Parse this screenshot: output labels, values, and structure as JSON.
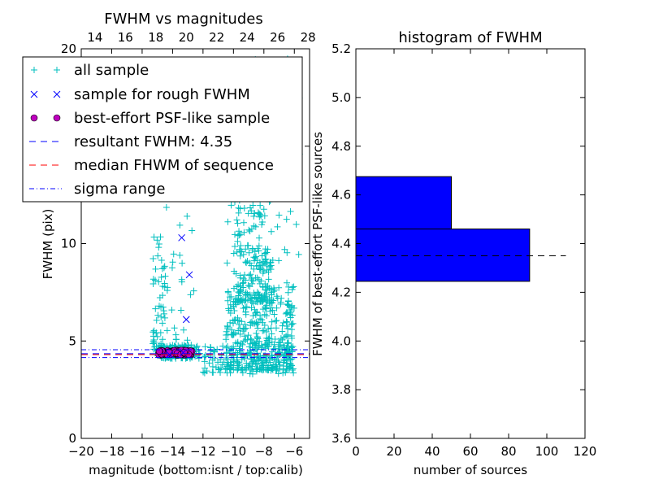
{
  "chart_data": [
    {
      "type": "scatter",
      "title": "FWHM vs magnitudes",
      "xlabel": "magnitude (bottom:isnt / top:calib)",
      "ylabel": "FWHM (pix)",
      "xlim": [
        -20,
        -5
      ],
      "ylim": [
        0,
        20
      ],
      "x_ticks": [
        -20,
        -18,
        -16,
        -14,
        -12,
        -10,
        -8,
        -6
      ],
      "x_tick_labels": [
        "−20",
        "−18",
        "−16",
        "−14",
        "−12",
        "−10",
        "−8",
        "−6"
      ],
      "y_ticks": [
        0,
        5,
        10,
        15,
        20
      ],
      "y_tick_labels": [
        "0",
        "5",
        "10",
        "15",
        "20"
      ],
      "top_axis": {
        "ticks": [
          14,
          16,
          18,
          20,
          22,
          24,
          26,
          28
        ],
        "tick_labels": [
          "14",
          "16",
          "18",
          "20",
          "22",
          "24",
          "26",
          "28"
        ],
        "offset": 33.1
      },
      "legend_position": "upper-left",
      "series": [
        {
          "name": "all sample",
          "marker": "+",
          "color": "#00bfbf",
          "clusters": [
            {
              "x_range": [
                -15.0,
                -12.2
              ],
              "y_range": [
                4.1,
                4.8
              ],
              "n": 150
            },
            {
              "x_range": [
                -15.3,
                -14.5
              ],
              "y_range": [
                4.5,
                10.5
              ],
              "n": 55
            },
            {
              "x_range": [
                -10.5,
                -6.0
              ],
              "y_range": [
                3.5,
                8.0
              ],
              "n": 380
            },
            {
              "x_range": [
                -10.0,
                -7.5
              ],
              "y_range": [
                7.0,
                15.0
              ],
              "n": 220
            },
            {
              "x_range": [
                -11.0,
                -5.5
              ],
              "y_range": [
                9.0,
                20.0
              ],
              "n": 60
            },
            {
              "x_range": [
                -14.5,
                -12.5
              ],
              "y_range": [
                5.0,
                12.0
              ],
              "n": 25
            },
            {
              "x_range": [
                -12.0,
                -6.0
              ],
              "y_range": [
                3.3,
                5.0
              ],
              "n": 120
            }
          ]
        },
        {
          "name": "sample for rough FWHM",
          "marker": "x",
          "color": "#0000ff",
          "points": [
            [
              -13.4,
              10.3
            ],
            [
              -12.9,
              8.4
            ],
            [
              -13.1,
              6.1
            ],
            [
              -13.3,
              4.4
            ],
            [
              -14.2,
              4.3
            ]
          ]
        },
        {
          "name": "best-effort PSF-like sample",
          "marker": "o",
          "color": "#bf00bf",
          "cluster": {
            "x_range": [
              -14.9,
              -12.7
            ],
            "y_range": [
              4.28,
              4.52
            ],
            "n": 95
          }
        }
      ],
      "hlines": [
        {
          "name": "resultant FWHM: 4.35",
          "y": 4.35,
          "style": "dashed",
          "color": "#0000ff"
        },
        {
          "name": "median FHWM of sequence",
          "y": 4.3,
          "style": "dashed",
          "color": "#ff0000"
        },
        {
          "name": "sigma range",
          "y": 4.15,
          "style": "dashdot",
          "color": "#0000ff"
        },
        {
          "name": "sigma range",
          "y": 4.55,
          "style": "dashdot",
          "color": "#0000ff"
        }
      ]
    },
    {
      "type": "bar",
      "orientation": "horizontal",
      "title": "histogram of FWHM",
      "xlabel": "number of sources",
      "ylabel": "FWHM of best-effort PSF-like sources",
      "xlim": [
        0,
        120
      ],
      "ylim": [
        3.6,
        5.2
      ],
      "x_ticks": [
        0,
        20,
        40,
        60,
        80,
        100,
        120
      ],
      "x_tick_labels": [
        "0",
        "20",
        "40",
        "60",
        "80",
        "100",
        "120"
      ],
      "y_ticks": [
        3.6,
        3.8,
        4.0,
        4.2,
        4.4,
        4.6,
        4.8,
        5.0,
        5.2
      ],
      "y_tick_labels": [
        "3.6",
        "3.8",
        "4.0",
        "4.2",
        "4.4",
        "4.6",
        "4.8",
        "5.0",
        "5.2"
      ],
      "bars": [
        {
          "y_from": 4.245,
          "y_to": 4.46,
          "value": 91
        },
        {
          "y_from": 4.46,
          "y_to": 4.675,
          "value": 50
        }
      ],
      "bar_color": "#0000ff",
      "hline": {
        "y": 4.35,
        "x_from": 0,
        "x_to": 110,
        "style": "dashed",
        "color": "#000000"
      }
    }
  ]
}
